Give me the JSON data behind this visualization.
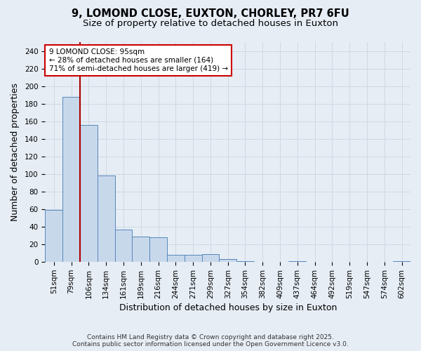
{
  "title_line1": "9, LOMOND CLOSE, EUXTON, CHORLEY, PR7 6FU",
  "title_line2": "Size of property relative to detached houses in Euxton",
  "xlabel": "Distribution of detached houses by size in Euxton",
  "ylabel": "Number of detached properties",
  "categories": [
    "51sqm",
    "79sqm",
    "106sqm",
    "134sqm",
    "161sqm",
    "189sqm",
    "216sqm",
    "244sqm",
    "271sqm",
    "299sqm",
    "327sqm",
    "354sqm",
    "382sqm",
    "409sqm",
    "437sqm",
    "464sqm",
    "492sqm",
    "519sqm",
    "547sqm",
    "574sqm",
    "602sqm"
  ],
  "values": [
    59,
    188,
    156,
    98,
    37,
    29,
    28,
    8,
    8,
    9,
    3,
    1,
    0,
    0,
    1,
    0,
    0,
    0,
    0,
    0,
    1
  ],
  "bar_color": "#c8d8eb",
  "bar_edge_color": "#5588bb",
  "background_color": "#e6edf5",
  "vline_x": 1.5,
  "vline_color": "#aa0000",
  "annotation_title": "9 LOMOND CLOSE: 95sqm",
  "annotation_line1": "← 28% of detached houses are smaller (164)",
  "annotation_line2": "71% of semi-detached houses are larger (419) →",
  "annotation_box_color": "#ffffff",
  "annotation_box_edge": "#cc0000",
  "ylim": [
    0,
    250
  ],
  "yticks": [
    0,
    20,
    40,
    60,
    80,
    100,
    120,
    140,
    160,
    180,
    200,
    220,
    240
  ],
  "grid_color": "#d0d8e4",
  "footnote1": "Contains HM Land Registry data © Crown copyright and database right 2025.",
  "footnote2": "Contains public sector information licensed under the Open Government Licence v3.0.",
  "title_fontsize": 10.5,
  "subtitle_fontsize": 9.5,
  "tick_fontsize": 7.5,
  "label_fontsize": 9,
  "annotation_fontsize": 7.5,
  "footnote_fontsize": 6.5
}
